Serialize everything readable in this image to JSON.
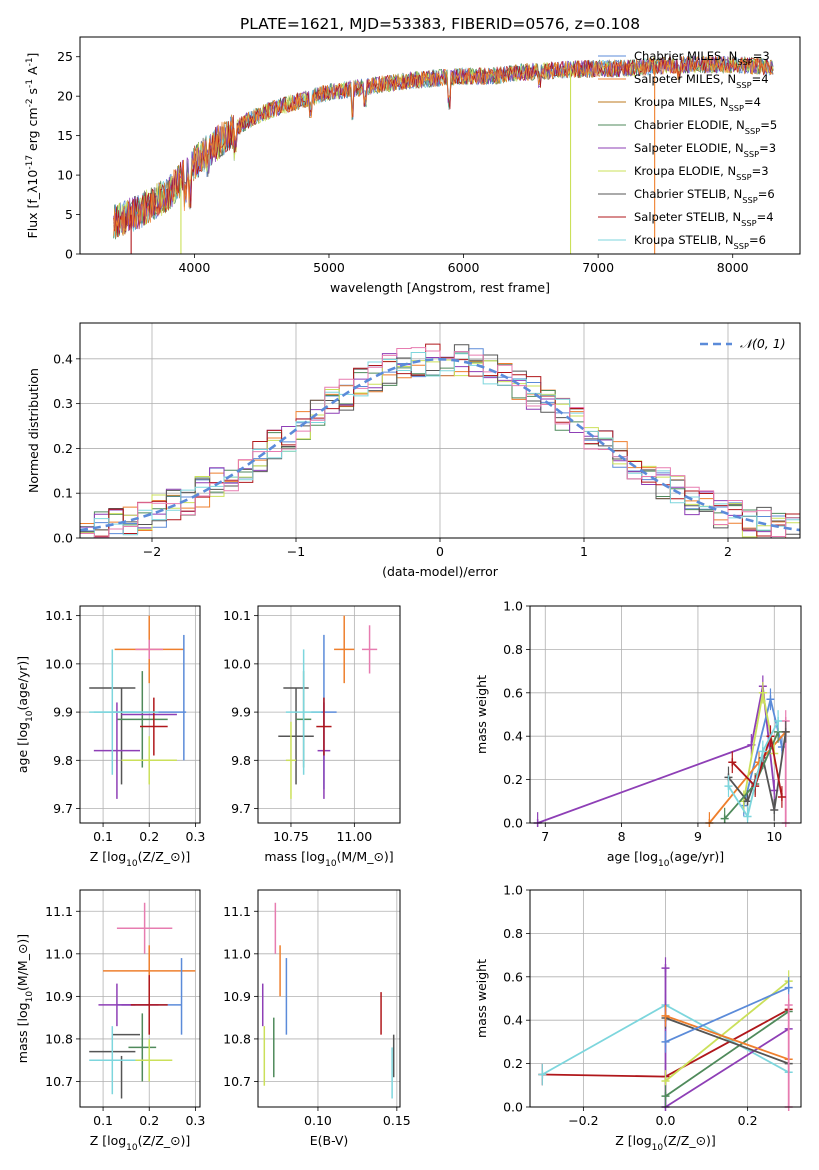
{
  "figure": {
    "title": "PLATE=1621, MJD=53383, FIBERID=0576, z=0.108"
  },
  "colors": {
    "Chabrier MILES": "#5b8bd9",
    "Salpeter MILES": "#ee7f2d",
    "Kroupa MILES": "#bc7a1e",
    "Chabrier ELODIE": "#4f8a5b",
    "Salpeter ELODIE": "#8e3fb6",
    "Kroupa ELODIE": "#cbe05a",
    "Chabrier STELIB": "#555555",
    "Salpeter STELIB": "#b0171b",
    "Kroupa STELIB": "#7dd6dd",
    "extra_pink": "#e77cb0",
    "normal_curve": "#5b8bd9"
  },
  "chart_data": [
    {
      "id": "spectrum",
      "type": "line",
      "xlabel": "wavelength [Angstrom, rest frame]",
      "ylabel": "Flux [f$_\\lambda$10$^{-17}$ erg cm$^{-2}$ s$^{-1}$ A$^{-1}$]",
      "xlim": [
        3150,
        8500
      ],
      "ylim": [
        0,
        27.5
      ],
      "xticks": [
        4000,
        5000,
        6000,
        7000,
        8000
      ],
      "yticks": [
        0,
        5,
        10,
        15,
        20,
        25
      ],
      "grid": false,
      "legend_position": "right",
      "legend": [
        {
          "label": "Chabrier MILES, N$_{SSP}$=3",
          "color": "#5b8bd9"
        },
        {
          "label": "Salpeter MILES, N$_{SSP}$=4",
          "color": "#ee7f2d"
        },
        {
          "label": "Kroupa MILES, N$_{SSP}$=4",
          "color": "#bc7a1e"
        },
        {
          "label": "Chabrier ELODIE, N$_{SSP}$=5",
          "color": "#4f8a5b"
        },
        {
          "label": "Salpeter ELODIE, N$_{SSP}$=3",
          "color": "#8e3fb6"
        },
        {
          "label": "Kroupa ELODIE, N$_{SSP}$=3",
          "color": "#cbe05a"
        },
        {
          "label": "Chabrier STELIB, N$_{SSP}$=6",
          "color": "#555555"
        },
        {
          "label": "Salpeter STELIB, N$_{SSP}$=4",
          "color": "#b0171b"
        },
        {
          "label": "Kroupa STELIB, N$_{SSP}$=6",
          "color": "#7dd6dd"
        }
      ],
      "series_note_values": {
        "x": [
          3400,
          3600,
          3800,
          4000,
          4200,
          4400,
          4600,
          4800,
          5000,
          5200,
          5400,
          5600,
          5800,
          6000,
          6200,
          6400,
          6600,
          6800,
          7000,
          7200,
          7400,
          7600,
          7800,
          8000,
          8200,
          8300
        ],
        "y": [
          4.0,
          5.5,
          7.5,
          11.5,
          14.5,
          17.0,
          18.5,
          19.5,
          20.5,
          21.0,
          21.5,
          22.0,
          22.3,
          22.5,
          22.5,
          23.0,
          23.2,
          23.4,
          23.5,
          23.5,
          23.8,
          24.0,
          24.0,
          24.0,
          23.8,
          23.5
        ]
      },
      "spikes": [
        {
          "x": 3530,
          "y_low": 0,
          "color": "#b0171b"
        },
        {
          "x": 3900,
          "y_low": 0,
          "color": "#cbe05a"
        },
        {
          "x": 6795,
          "y_low": 0,
          "color": "#cbe05a"
        },
        {
          "x": 7420,
          "y_low": 0,
          "color": "#ee7f2d"
        }
      ]
    },
    {
      "id": "residual_hist",
      "type": "step",
      "xlabel": "(data-model)/error",
      "ylabel": "Normed distribution",
      "xlim": [
        -2.5,
        2.5
      ],
      "ylim": [
        0,
        0.48
      ],
      "xticks": [
        -2,
        -1,
        0,
        1,
        2
      ],
      "xticklabels": [
        "−2",
        "−1",
        "0",
        "1",
        "2"
      ],
      "yticks": [
        0.0,
        0.1,
        0.2,
        0.3,
        0.4
      ],
      "yticklabels": [
        "0.0",
        "0.1",
        "0.2",
        "0.3",
        "0.4"
      ],
      "grid": true,
      "legend": [
        {
          "label": "$\\mathcal{N}(0,1)$",
          "style": "dashed",
          "color": "#5b8bd9"
        }
      ],
      "bin_width": 0.1,
      "x_start": -2.5,
      "bins": 50,
      "normal_curve": {
        "mean": 0,
        "std": 1
      }
    },
    {
      "id": "age_vs_Z",
      "type": "errorbar",
      "xlabel": "Z [log$_{10}$($Z/Z_\\odot$)]",
      "ylabel": "age  [log$_{10}$($age/yr$)]",
      "xlim": [
        0.05,
        0.31
      ],
      "ylim": [
        9.67,
        10.12
      ],
      "xticks": [
        0.1,
        0.2,
        0.3
      ],
      "xticklabels": [
        "0.1",
        "0.2",
        "0.3"
      ],
      "yticks": [
        9.7,
        9.8,
        9.9,
        10.0,
        10.1
      ],
      "yticklabels": [
        "9.7",
        "9.8",
        "9.9",
        "10.0",
        "10.1"
      ],
      "grid": true,
      "points": [
        {
          "color": "#ee7f2d",
          "x": 0.2,
          "y": 10.03,
          "xerr": 0.075,
          "yerr": 0.07
        },
        {
          "color": "#e77cb0",
          "x": 0.2,
          "y": 10.03,
          "xerr": 0.03,
          "yerr": 0.02
        },
        {
          "color": "#5b8bd9",
          "x": 0.2,
          "y": 9.9,
          "xerr": 0.08,
          "yerr": 0.0
        },
        {
          "color": "#5b8bd9",
          "x": 0.275,
          "y": 9.93,
          "xerr": 0.0,
          "yerr": 0.13
        },
        {
          "color": "#555555",
          "x": 0.12,
          "y": 9.95,
          "xerr": 0.05,
          "yerr": 0.0
        },
        {
          "color": "#555555",
          "x": 0.14,
          "y": 9.85,
          "xerr": 0.0,
          "yerr": 0.1
        },
        {
          "color": "#4f8a5b",
          "x": 0.185,
          "y": 9.885,
          "xerr": 0.055,
          "yerr": 0.1
        },
        {
          "color": "#8e3fb6",
          "x": 0.13,
          "y": 9.82,
          "xerr": 0.05,
          "yerr": 0.1
        },
        {
          "color": "#8e3fb6",
          "x": 0.2,
          "y": 9.895,
          "xerr": 0.06,
          "yerr": 0.0
        },
        {
          "color": "#b0171b",
          "x": 0.21,
          "y": 9.87,
          "xerr": 0.03,
          "yerr": 0.06
        },
        {
          "color": "#cbe05a",
          "x": 0.2,
          "y": 9.8,
          "xerr": 0.06,
          "yerr": 0.05
        },
        {
          "color": "#7dd6dd",
          "x": 0.12,
          "y": 9.9,
          "xerr": 0.05,
          "yerr": 0.13
        },
        {
          "color": "#7dd6dd",
          "x": 0.15,
          "y": 9.9,
          "xerr": 0.07,
          "yerr": 0.0
        }
      ]
    },
    {
      "id": "age_vs_mass",
      "type": "errorbar",
      "xlabel": "mass [log$_{10}$($M/M_\\odot$)]",
      "xlim": [
        10.62,
        11.18
      ],
      "ylim": [
        9.67,
        10.12
      ],
      "xticks": [
        10.75,
        11.0
      ],
      "xticklabels": [
        "10.75",
        "11.00"
      ],
      "yticks": [
        9.7,
        9.8,
        9.9,
        10.0,
        10.1
      ],
      "yticklabels": [
        "9.7",
        "9.8",
        "9.9",
        "10.0",
        "10.1"
      ],
      "grid": true,
      "points": [
        {
          "color": "#e77cb0",
          "x": 11.06,
          "y": 10.03,
          "xerr": 0.03,
          "yerr": 0.05
        },
        {
          "color": "#ee7f2d",
          "x": 10.96,
          "y": 10.03,
          "xerr": 0.04,
          "yerr": 0.07
        },
        {
          "color": "#5b8bd9",
          "x": 10.88,
          "y": 9.9,
          "xerr": 0.05,
          "yerr": 0.16
        },
        {
          "color": "#555555",
          "x": 10.77,
          "y": 9.85,
          "xerr": 0.07,
          "yerr": 0.1
        },
        {
          "color": "#555555",
          "x": 10.77,
          "y": 9.95,
          "xerr": 0.05,
          "yerr": 0.0
        },
        {
          "color": "#4f8a5b",
          "x": 10.8,
          "y": 9.885,
          "xerr": 0.03,
          "yerr": 0.1
        },
        {
          "color": "#8e3fb6",
          "x": 10.88,
          "y": 9.82,
          "xerr": 0.025,
          "yerr": 0.1
        },
        {
          "color": "#b0171b",
          "x": 10.88,
          "y": 9.87,
          "xerr": 0.03,
          "yerr": 0.06
        },
        {
          "color": "#cbe05a",
          "x": 10.75,
          "y": 9.8,
          "xerr": 0.02,
          "yerr": 0.08
        },
        {
          "color": "#7dd6dd",
          "x": 10.8,
          "y": 9.9,
          "xerr": 0.07,
          "yerr": 0.13
        }
      ]
    },
    {
      "id": "massweight_vs_age",
      "type": "line",
      "xlabel": "age  [log$_{10}$($age/yr$)]",
      "ylabel": "mass weight",
      "xlim": [
        6.8,
        10.35
      ],
      "ylim": [
        0,
        1.0
      ],
      "xticks": [
        7,
        8,
        9,
        10
      ],
      "xticklabels": [
        "7",
        "8",
        "9",
        "10"
      ],
      "yticks": [
        0.0,
        0.2,
        0.4,
        0.6,
        0.8,
        1.0
      ],
      "yticklabels": [
        "0.0",
        "0.2",
        "0.4",
        "0.6",
        "0.8",
        "1.0"
      ],
      "grid": true,
      "series": [
        {
          "color": "#8e3fb6",
          "x": [
            6.9,
            9.7,
            9.85,
            10.0
          ],
          "y": [
            0.0,
            0.36,
            0.63,
            0.15
          ]
        },
        {
          "color": "#5b8bd9",
          "x": [
            9.6,
            9.95,
            10.1
          ],
          "y": [
            0.08,
            0.57,
            0.35
          ]
        },
        {
          "color": "#ee7f2d",
          "x": [
            9.15,
            9.8,
            10.15
          ],
          "y": [
            0.0,
            0.28,
            0.42
          ]
        },
        {
          "color": "#e77cb0",
          "x": [
            10.15,
            10.15
          ],
          "y": [
            0.0,
            0.47
          ]
        },
        {
          "color": "#cbe05a",
          "x": [
            9.6,
            9.85,
            10.0
          ],
          "y": [
            0.1,
            0.6,
            0.32
          ]
        },
        {
          "color": "#555555",
          "x": [
            9.4,
            9.65,
            9.85,
            10.0,
            10.15
          ],
          "y": [
            0.21,
            0.1,
            0.3,
            0.06,
            0.42
          ]
        },
        {
          "color": "#4f8a5b",
          "x": [
            9.35,
            9.75,
            10.05
          ],
          "y": [
            0.02,
            0.18,
            0.42
          ]
        },
        {
          "color": "#b0171b",
          "x": [
            9.45,
            9.75,
            9.95,
            10.1
          ],
          "y": [
            0.28,
            0.17,
            0.4,
            0.12
          ]
        },
        {
          "color": "#7dd6dd",
          "x": [
            9.4,
            9.65,
            9.85,
            10.05
          ],
          "y": [
            0.17,
            0.03,
            0.33,
            0.47
          ]
        }
      ]
    },
    {
      "id": "mass_vs_Z",
      "type": "errorbar",
      "xlabel": "Z [log$_{10}$($Z/Z_\\odot$)]",
      "ylabel": "mass [log$_{10}$($M/M_\\odot$)]",
      "xlim": [
        0.05,
        0.31
      ],
      "ylim": [
        10.64,
        11.15
      ],
      "xticks": [
        0.1,
        0.2,
        0.3
      ],
      "xticklabels": [
        "0.1",
        "0.2",
        "0.3"
      ],
      "yticks": [
        10.7,
        10.8,
        10.9,
        11.0,
        11.1
      ],
      "yticklabels": [
        "10.7",
        "10.8",
        "10.9",
        "11.0",
        "11.1"
      ],
      "grid": true,
      "points": [
        {
          "color": "#e77cb0",
          "x": 0.19,
          "y": 11.06,
          "xerr": 0.06,
          "yerr": 0.06
        },
        {
          "color": "#ee7f2d",
          "x": 0.2,
          "y": 10.96,
          "xerr": 0.1,
          "yerr": 0.06
        },
        {
          "color": "#5b8bd9",
          "x": 0.27,
          "y": 10.9,
          "xerr": 0.0,
          "yerr": 0.09
        },
        {
          "color": "#5b8bd9",
          "x": 0.2,
          "y": 10.88,
          "xerr": 0.07,
          "yerr": 0.0
        },
        {
          "color": "#8e3fb6",
          "x": 0.13,
          "y": 10.88,
          "xerr": 0.04,
          "yerr": 0.05
        },
        {
          "color": "#8e3fb6",
          "x": 0.18,
          "y": 10.88,
          "xerr": 0.04,
          "yerr": 0.0
        },
        {
          "color": "#b0171b",
          "x": 0.2,
          "y": 10.88,
          "xerr": 0.04,
          "yerr": 0.07
        },
        {
          "color": "#555555",
          "x": 0.15,
          "y": 10.81,
          "xerr": 0.03,
          "yerr": 0.0
        },
        {
          "color": "#555555",
          "x": 0.14,
          "y": 10.71,
          "xerr": 0.0,
          "yerr": 0.05
        },
        {
          "color": "#555555",
          "x": 0.12,
          "y": 10.77,
          "xerr": 0.05,
          "yerr": 0.0
        },
        {
          "color": "#4f8a5b",
          "x": 0.185,
          "y": 10.78,
          "xerr": 0.03,
          "yerr": 0.08
        },
        {
          "color": "#cbe05a",
          "x": 0.2,
          "y": 10.75,
          "xerr": 0.05,
          "yerr": 0.05
        },
        {
          "color": "#7dd6dd",
          "x": 0.12,
          "y": 10.75,
          "xerr": 0.05,
          "yerr": 0.08
        }
      ]
    },
    {
      "id": "mass_vs_ebv",
      "type": "errorbar",
      "xlabel": "E(B-V)",
      "xlim": [
        0.062,
        0.152
      ],
      "ylim": [
        10.64,
        11.15
      ],
      "xticks": [
        0.1,
        0.15
      ],
      "xticklabels": [
        "0.10",
        "0.15"
      ],
      "yticks": [
        10.7,
        10.8,
        10.9,
        11.0,
        11.1
      ],
      "yticklabels": [
        "10.7",
        "10.8",
        "10.9",
        "11.0",
        "11.1"
      ],
      "grid": true,
      "points": [
        {
          "color": "#8e3fb6",
          "x": 0.065,
          "y": 10.88,
          "xerr": 0.0,
          "yerr": 0.05
        },
        {
          "color": "#cbe05a",
          "x": 0.066,
          "y": 10.76,
          "xerr": 0.0,
          "yerr": 0.07
        },
        {
          "color": "#4f8a5b",
          "x": 0.072,
          "y": 10.78,
          "xerr": 0.0,
          "yerr": 0.07
        },
        {
          "color": "#e77cb0",
          "x": 0.073,
          "y": 11.06,
          "xerr": 0.0,
          "yerr": 0.06
        },
        {
          "color": "#ee7f2d",
          "x": 0.076,
          "y": 10.96,
          "xerr": 0.0,
          "yerr": 0.06
        },
        {
          "color": "#5b8bd9",
          "x": 0.08,
          "y": 10.9,
          "xerr": 0.0,
          "yerr": 0.09
        },
        {
          "color": "#b0171b",
          "x": 0.14,
          "y": 10.86,
          "xerr": 0.0,
          "yerr": 0.05
        },
        {
          "color": "#555555",
          "x": 0.148,
          "y": 10.76,
          "xerr": 0.0,
          "yerr": 0.05
        },
        {
          "color": "#7dd6dd",
          "x": 0.147,
          "y": 10.72,
          "xerr": 0.0,
          "yerr": 0.06
        }
      ]
    },
    {
      "id": "massweight_vs_Z",
      "type": "line",
      "xlabel": "Z [log$_{10}$($Z/Z_\\odot$)]",
      "ylabel": "mass weight",
      "xlim": [
        -0.33,
        0.33
      ],
      "ylim": [
        0,
        1.0
      ],
      "xticks": [
        -0.2,
        0.0,
        0.2
      ],
      "xticklabels": [
        "−0.2",
        "0.0",
        "0.2"
      ],
      "yticks": [
        0.0,
        0.2,
        0.4,
        0.6,
        0.8,
        1.0
      ],
      "yticklabels": [
        "0.0",
        "0.2",
        "0.4",
        "0.6",
        "0.8",
        "1.0"
      ],
      "grid": true,
      "series": [
        {
          "color": "#b0171b",
          "x": [
            -0.3,
            0.0,
            0.3
          ],
          "y": [
            0.15,
            0.14,
            0.45
          ]
        },
        {
          "color": "#7dd6dd",
          "x": [
            -0.3,
            0.0,
            0.3
          ],
          "y": [
            0.15,
            0.47,
            0.16
          ]
        },
        {
          "color": "#8e3fb6",
          "x": [
            0.0,
            0.0,
            0.3
          ],
          "y": [
            0.64,
            0.0,
            0.36
          ]
        },
        {
          "color": "#cbe05a",
          "x": [
            0.0,
            0.3
          ],
          "y": [
            0.12,
            0.58
          ]
        },
        {
          "color": "#4f8a5b",
          "x": [
            0.0,
            0.3
          ],
          "y": [
            0.05,
            0.44
          ]
        },
        {
          "color": "#555555",
          "x": [
            0.0,
            0.3
          ],
          "y": [
            0.41,
            0.2
          ]
        },
        {
          "color": "#ee7f2d",
          "x": [
            0.0,
            0.3
          ],
          "y": [
            0.42,
            0.22
          ]
        },
        {
          "color": "#5b8bd9",
          "x": [
            0.0,
            0.3
          ],
          "y": [
            0.3,
            0.55
          ]
        },
        {
          "color": "#e77cb0",
          "x": [
            0.3,
            0.3
          ],
          "y": [
            0.0,
            0.47
          ]
        }
      ]
    }
  ]
}
